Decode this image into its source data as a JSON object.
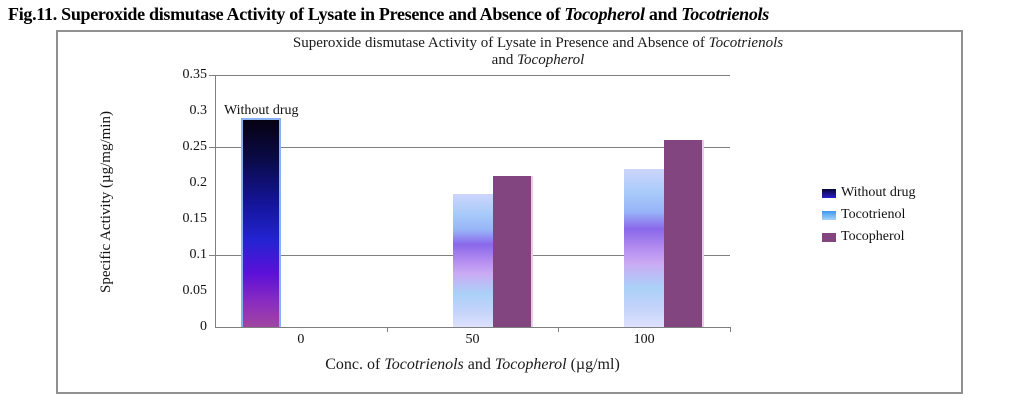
{
  "caption": {
    "parts": [
      {
        "t": "Fig.11. Superoxide dismutase Activity of Lysate in Presence and Absence of ",
        "i": false
      },
      {
        "t": "Tocopherol",
        "i": true
      },
      {
        "t": " and ",
        "i": false
      },
      {
        "t": "Tocotrienols",
        "i": true
      }
    ]
  },
  "chart": {
    "title_line1_parts": [
      {
        "t": "Superoxide dismutase Activity of Lysate in Presence and Absence of ",
        "i": false
      },
      {
        "t": "Tocotrienols",
        "i": true
      }
    ],
    "title_line2_parts": [
      {
        "t": "and ",
        "i": false
      },
      {
        "t": "Tocopherol",
        "i": true
      }
    ],
    "xlabel_parts": [
      {
        "t": "Conc. of ",
        "i": false
      },
      {
        "t": "Tocotrienols",
        "i": true
      },
      {
        "t": " and ",
        "i": false
      },
      {
        "t": "Tocopherol",
        "i": true
      },
      {
        "t": " (µg/ml)",
        "i": false
      }
    ]
  },
  "legend": {
    "items": [
      {
        "label": "Without drug",
        "key": "without_drug"
      },
      {
        "label": "Tocotrienol",
        "key": "tocotrienol"
      },
      {
        "label": "Tocopherol",
        "key": "tocopherol"
      }
    ]
  },
  "colors": {
    "frame_border": "#909090",
    "gridline": "#808080",
    "axis": "#7f7f7f",
    "text": "#000000",
    "without_drug_stops": [
      [
        "#060112",
        0
      ],
      [
        "#0a0a44",
        18
      ],
      [
        "#141499",
        40
      ],
      [
        "#2323d2",
        58
      ],
      [
        "#5c10d8",
        74
      ],
      [
        "#8a2cc0",
        88
      ],
      [
        "#a145a2",
        100
      ]
    ],
    "without_drug_border": "#87b1f1",
    "tocotrienol_stops": [
      [
        "#cdd5fb",
        0
      ],
      [
        "#a8cbfa",
        15
      ],
      [
        "#98b4f8",
        27
      ],
      [
        "#8a68ea",
        38
      ],
      [
        "#b38cf0",
        50
      ],
      [
        "#caabf3",
        60
      ],
      [
        "#abd1f8",
        75
      ],
      [
        "#c3d3fa",
        88
      ],
      [
        "#dfe1fd",
        100
      ]
    ],
    "tocopherol": "#82457f",
    "tocopherol_edge": "#e3d0e8",
    "legend_without_drug": [
      "#0a0636",
      "#2a1ecd"
    ],
    "legend_tocotrienol": [
      "#3d97ee",
      "#a8d4f8"
    ]
  },
  "chart_data": {
    "type": "bar",
    "title": "Superoxide dismutase Activity of Lysate in Presence and Absence of Tocotrienols and Tocopherol",
    "categories": [
      "0",
      "50",
      "100"
    ],
    "series": [
      {
        "name": "Without drug",
        "values": [
          0.29,
          null,
          null
        ]
      },
      {
        "name": "Tocotrienol",
        "values": [
          null,
          0.185,
          0.22
        ]
      },
      {
        "name": "Tocopherol",
        "values": [
          null,
          0.21,
          0.26
        ]
      }
    ],
    "xlabel": "Conc. of Tocotrienols and Tocopherol (µg/ml)",
    "ylabel": "Specific Activity (µg/mg/min)",
    "ylim": [
      0,
      0.35
    ],
    "ytick_step": 0.05,
    "gridlines_at": [
      0.35,
      0.25,
      0.1
    ],
    "legend_position": "right",
    "annotation": "Without drug"
  }
}
